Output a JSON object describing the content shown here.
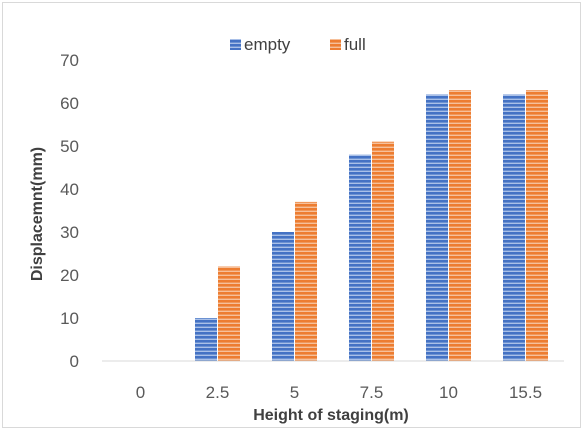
{
  "chart_data": {
    "type": "bar",
    "categories": [
      "0",
      "2.5",
      "5",
      "7.5",
      "10",
      "15.5"
    ],
    "series": [
      {
        "name": "empty",
        "values": [
          0,
          10,
          30,
          48,
          62,
          62
        ],
        "color": "#4472c4"
      },
      {
        "name": "full",
        "values": [
          0,
          22,
          37,
          51,
          63,
          63
        ],
        "color": "#ed7d31"
      }
    ],
    "ylim": [
      0,
      70
    ],
    "yticks": [
      0,
      10,
      20,
      30,
      40,
      50,
      60,
      70
    ],
    "xlabel": "Height of staging(m)",
    "ylabel": "Displacemnt(mm)",
    "title": "",
    "grid": false,
    "legend_position": "top"
  }
}
